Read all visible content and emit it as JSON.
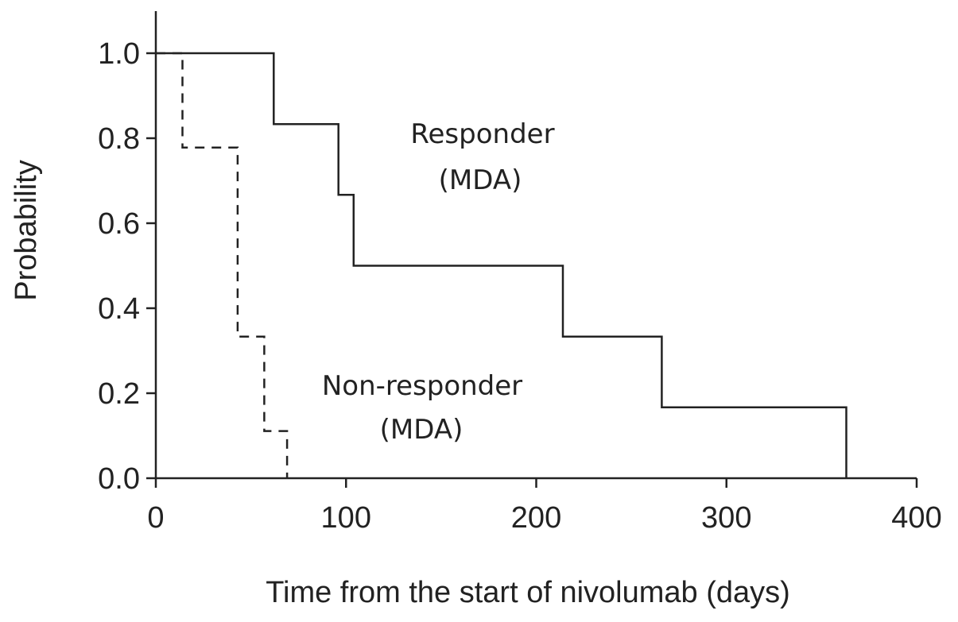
{
  "chart_data": {
    "type": "line",
    "step": true,
    "xlabel": "Time from the start of nivolumab (days)",
    "ylabel": "Probability",
    "xlim": [
      0,
      400
    ],
    "ylim": [
      0,
      1.0
    ],
    "xticks": [
      0,
      100,
      200,
      300,
      400
    ],
    "xtick_labels": [
      "0",
      "100",
      "200",
      "300",
      "400"
    ],
    "yticks": [
      0,
      0.2,
      0.4,
      0.6,
      0.8,
      1.0
    ],
    "ytick_labels": [
      "0.0",
      "0.2",
      "0.4",
      "0.6",
      "0.8",
      "1.0"
    ],
    "grid": false,
    "legend": "none",
    "annotations": [
      {
        "lines": [
          "Responder",
          "(MDA)"
        ],
        "series": "responder"
      },
      {
        "lines": [
          "Non-responder",
          "(MDA)"
        ],
        "series": "non-responder"
      }
    ],
    "series": [
      {
        "key": "responder",
        "line_style": "solid",
        "color": "#222222",
        "x": [
          0,
          62,
          62,
          96,
          96,
          104,
          104,
          214,
          214,
          266,
          266,
          363,
          363
        ],
        "y": [
          1.0,
          1.0,
          0.833,
          0.833,
          0.667,
          0.667,
          0.5,
          0.5,
          0.333,
          0.333,
          0.167,
          0.167,
          0.0
        ]
      },
      {
        "key": "non-responder",
        "line_style": "dashed",
        "color": "#222222",
        "x": [
          0,
          10,
          10,
          14,
          14,
          41,
          41,
          43,
          43,
          56,
          56,
          57,
          57,
          63,
          63,
          69,
          69
        ],
        "y": [
          1.0,
          1.0,
          1.0,
          1.0,
          0.778,
          0.778,
          0.778,
          0.778,
          0.333,
          0.333,
          0.333,
          0.333,
          0.111,
          0.111,
          0.111,
          0.111,
          0.0
        ]
      }
    ]
  }
}
